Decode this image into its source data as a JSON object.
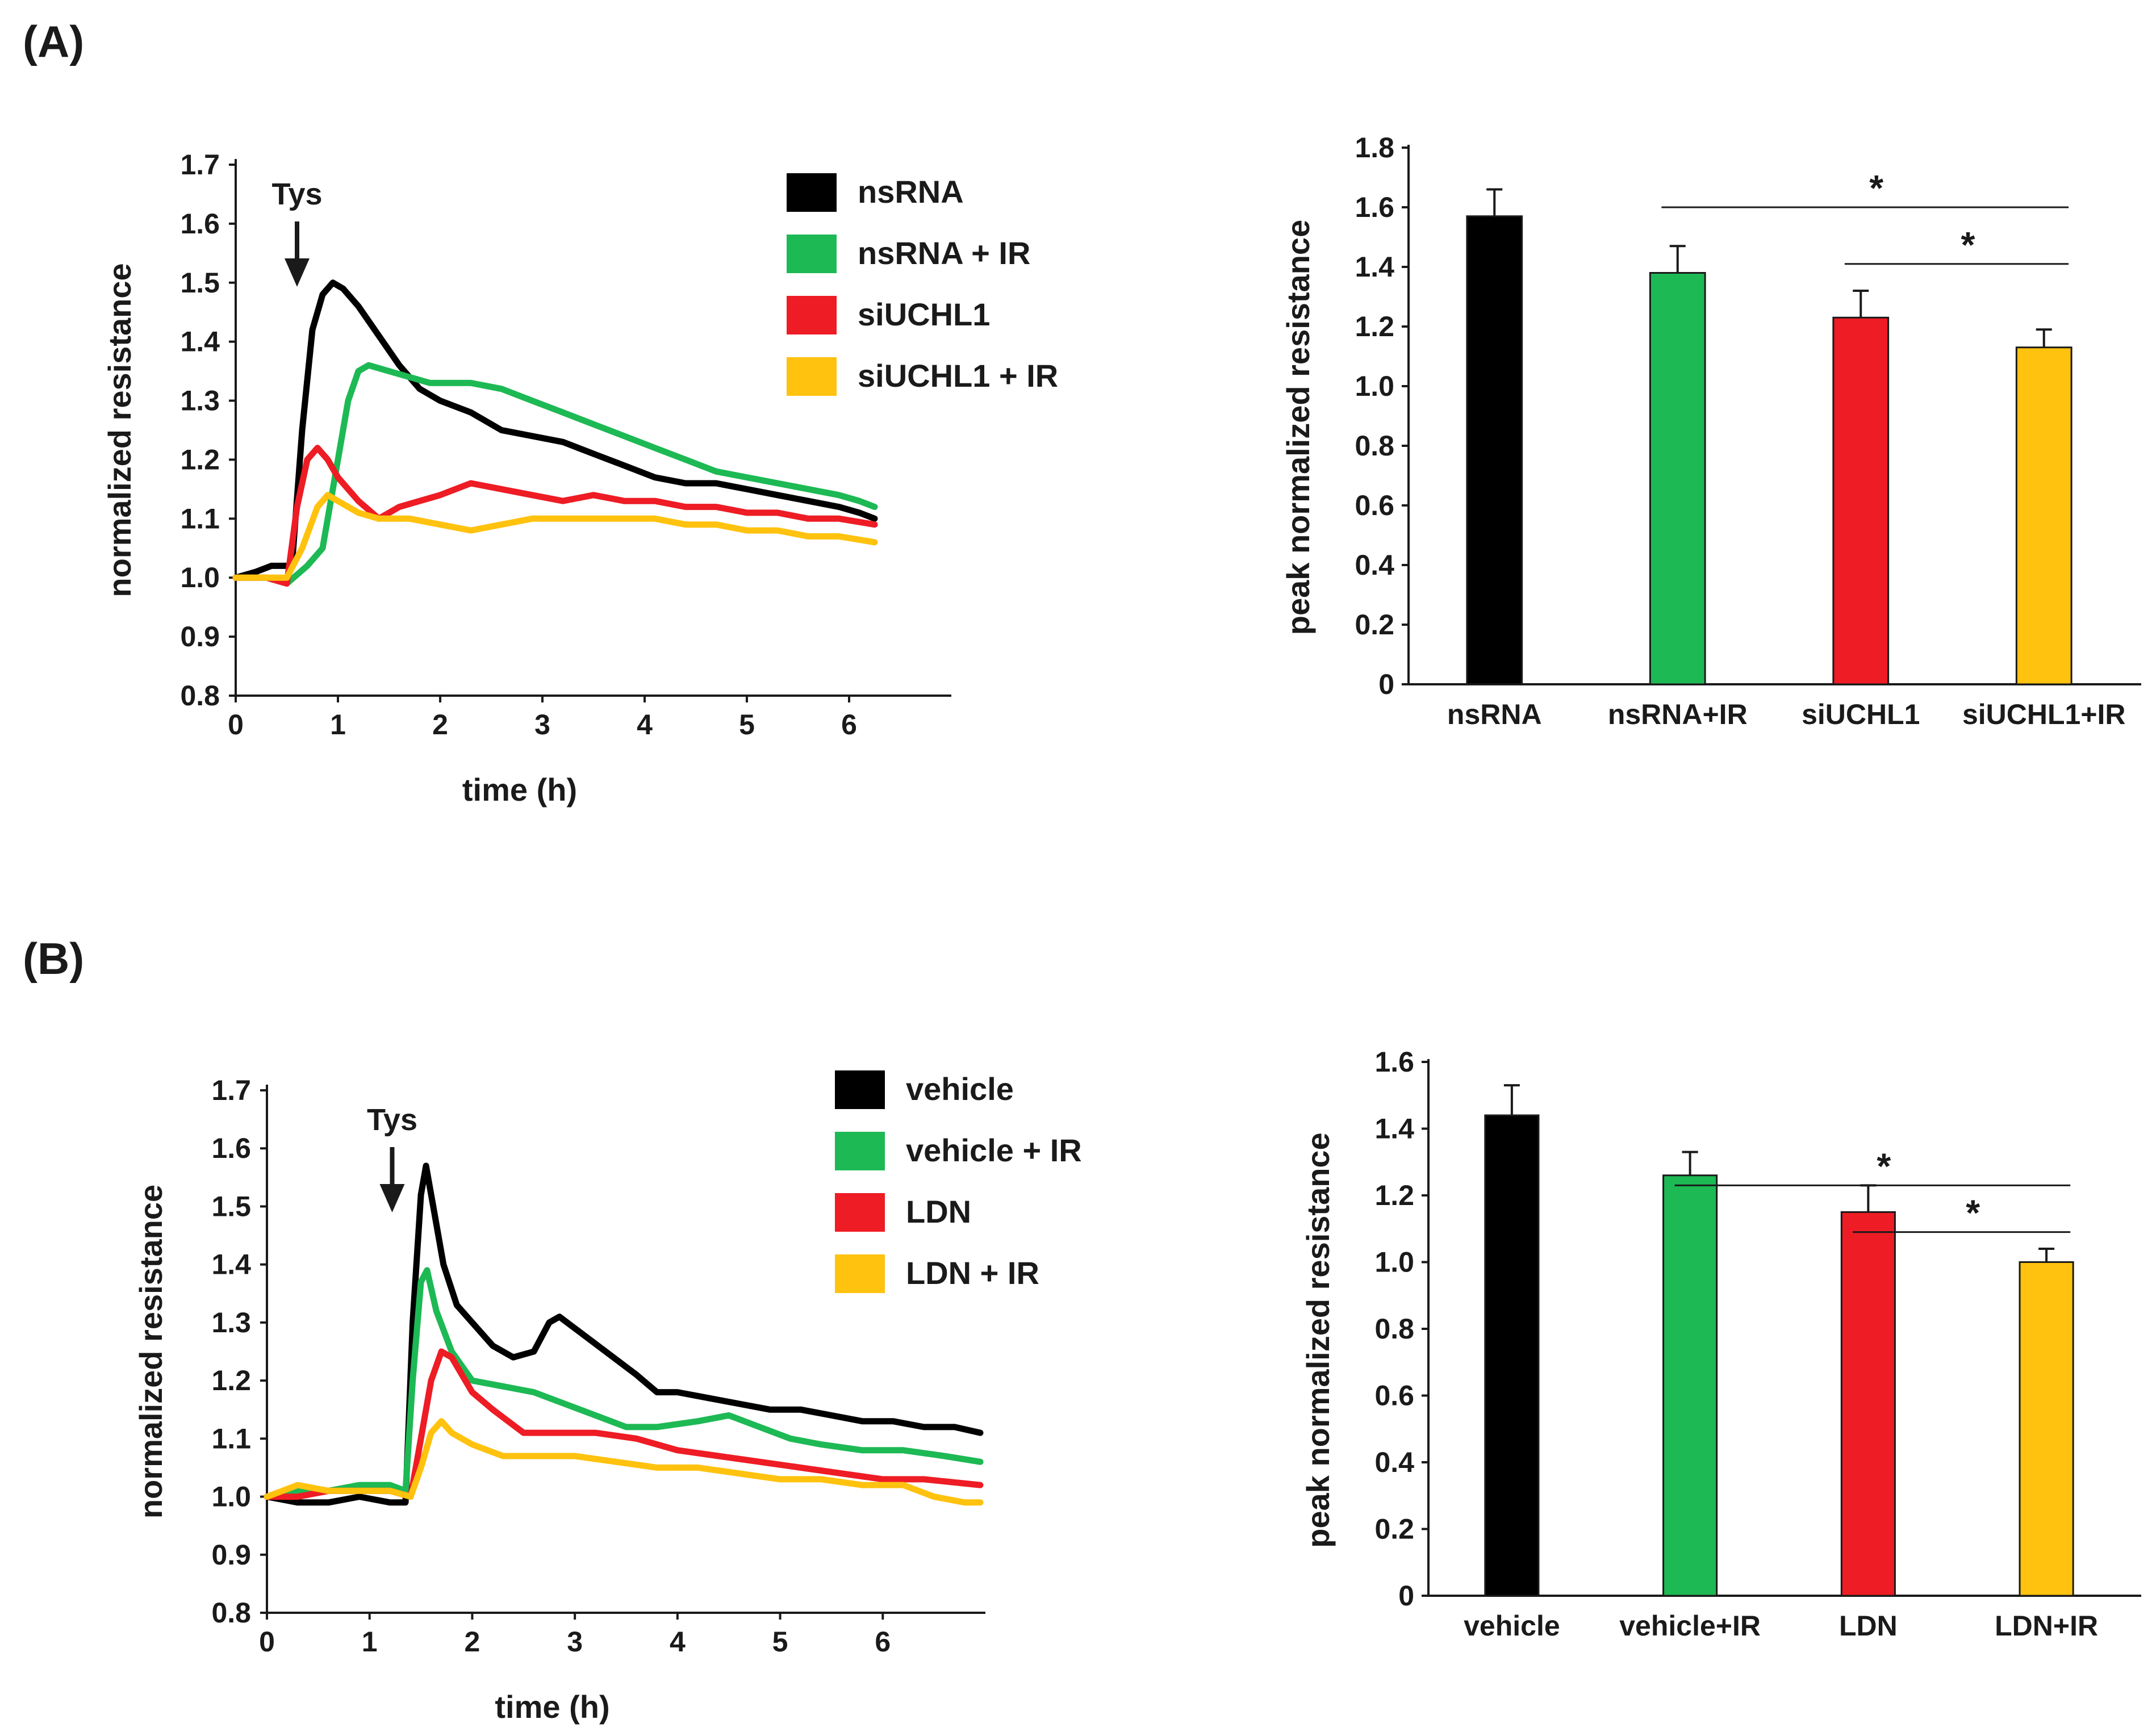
{
  "panels": [
    {
      "label": "(A)"
    },
    {
      "label": "(B)"
    }
  ],
  "colors": {
    "black": "#000000",
    "green": "#1db954",
    "red": "#ee1c24",
    "yellow": "#ffc20e",
    "axis": "#1a1a1a"
  },
  "icons": {
    "arrow": "down-arrow-icon"
  },
  "chart_data": [
    {
      "id": "A_line",
      "type": "line",
      "title": "",
      "xlabel": "time (h)",
      "ylabel": "normalized resistance",
      "xlim": [
        0,
        7
      ],
      "ylim": [
        0.8,
        1.7
      ],
      "xticks": [
        0,
        1,
        2,
        3,
        4,
        5,
        6
      ],
      "yticks": [
        "0.8",
        "0.9",
        "1.0",
        "1.1",
        "1.2",
        "1.3",
        "1.4",
        "1.5",
        "1.6",
        "1.7"
      ],
      "annotation": {
        "text": "Tys",
        "x": 0.6
      },
      "legend_position": "top-right",
      "series": [
        {
          "name": "nsRNA",
          "color": "#000000",
          "x": [
            0,
            0.2,
            0.35,
            0.55,
            0.65,
            0.75,
            0.85,
            0.95,
            1.05,
            1.2,
            1.4,
            1.6,
            1.8,
            2.0,
            2.3,
            2.6,
            2.9,
            3.2,
            3.5,
            3.8,
            4.1,
            4.4,
            4.7,
            5.0,
            5.3,
            5.6,
            5.9,
            6.1,
            6.25
          ],
          "y": [
            1.0,
            1.01,
            1.02,
            1.02,
            1.25,
            1.42,
            1.48,
            1.5,
            1.49,
            1.46,
            1.41,
            1.36,
            1.32,
            1.3,
            1.28,
            1.25,
            1.24,
            1.23,
            1.21,
            1.19,
            1.17,
            1.16,
            1.16,
            1.15,
            1.14,
            1.13,
            1.12,
            1.11,
            1.1
          ]
        },
        {
          "name": "nsRNA + IR",
          "color": "#1db954",
          "x": [
            0,
            0.3,
            0.5,
            0.7,
            0.85,
            1.0,
            1.1,
            1.2,
            1.3,
            1.5,
            1.7,
            1.9,
            2.1,
            2.3,
            2.6,
            2.9,
            3.2,
            3.5,
            3.8,
            4.1,
            4.4,
            4.7,
            5.0,
            5.3,
            5.6,
            5.9,
            6.1,
            6.25
          ],
          "y": [
            1.0,
            1.0,
            0.99,
            1.02,
            1.05,
            1.2,
            1.3,
            1.35,
            1.36,
            1.35,
            1.34,
            1.33,
            1.33,
            1.33,
            1.32,
            1.3,
            1.28,
            1.26,
            1.24,
            1.22,
            1.2,
            1.18,
            1.17,
            1.16,
            1.15,
            1.14,
            1.13,
            1.12
          ]
        },
        {
          "name": "siUCHL1",
          "color": "#ee1c24",
          "x": [
            0,
            0.3,
            0.5,
            0.6,
            0.7,
            0.8,
            0.9,
            1.0,
            1.2,
            1.4,
            1.6,
            1.8,
            2.0,
            2.3,
            2.6,
            2.9,
            3.2,
            3.5,
            3.8,
            4.1,
            4.4,
            4.7,
            5.0,
            5.3,
            5.6,
            5.9,
            6.25
          ],
          "y": [
            1.0,
            1.0,
            0.99,
            1.12,
            1.2,
            1.22,
            1.2,
            1.17,
            1.13,
            1.1,
            1.12,
            1.13,
            1.14,
            1.16,
            1.15,
            1.14,
            1.13,
            1.14,
            1.13,
            1.13,
            1.12,
            1.12,
            1.11,
            1.11,
            1.1,
            1.1,
            1.09
          ]
        },
        {
          "name": "siUCHL1 + IR",
          "color": "#ffc20e",
          "x": [
            0,
            0.3,
            0.5,
            0.65,
            0.8,
            0.9,
            1.0,
            1.2,
            1.4,
            1.7,
            2.0,
            2.3,
            2.6,
            2.9,
            3.2,
            3.5,
            3.8,
            4.1,
            4.4,
            4.7,
            5.0,
            5.3,
            5.6,
            5.9,
            6.25
          ],
          "y": [
            1.0,
            1.0,
            1.0,
            1.05,
            1.12,
            1.14,
            1.13,
            1.11,
            1.1,
            1.1,
            1.09,
            1.08,
            1.09,
            1.1,
            1.1,
            1.1,
            1.1,
            1.1,
            1.09,
            1.09,
            1.08,
            1.08,
            1.07,
            1.07,
            1.06
          ]
        }
      ]
    },
    {
      "id": "A_bar",
      "type": "bar",
      "title": "",
      "xlabel": "",
      "ylabel": "peak normalized resistance",
      "ylim": [
        0,
        1.8
      ],
      "yticks": [
        "0",
        "0.2",
        "0.4",
        "0.6",
        "0.8",
        "1.0",
        "1.2",
        "1.4",
        "1.6",
        "1.8"
      ],
      "categories": [
        "nsRNA",
        "nsRNA+IR",
        "siUCHL1",
        "siUCHL1+IR"
      ],
      "values": [
        1.57,
        1.38,
        1.23,
        1.13
      ],
      "errors": [
        0.09,
        0.09,
        0.09,
        0.06
      ],
      "colors": [
        "#000000",
        "#1db954",
        "#ee1c24",
        "#ffc20e"
      ],
      "significance": [
        {
          "from": 1,
          "to": 3,
          "label": "*",
          "y": 1.6
        },
        {
          "from": 2,
          "to": 3,
          "label": "*",
          "y": 1.41
        }
      ]
    },
    {
      "id": "B_line",
      "type": "line",
      "title": "",
      "xlabel": "time (h)",
      "ylabel": "normalized resistance",
      "xlim": [
        0,
        7
      ],
      "ylim": [
        0.8,
        1.7
      ],
      "xticks": [
        0,
        1,
        2,
        3,
        4,
        5,
        6
      ],
      "yticks": [
        "0.8",
        "0.9",
        "1.0",
        "1.1",
        "1.2",
        "1.3",
        "1.4",
        "1.5",
        "1.6",
        "1.7"
      ],
      "annotation": {
        "text": "Tys",
        "x": 1.22
      },
      "legend_position": "top-right",
      "series": [
        {
          "name": "vehicle",
          "color": "#000000",
          "x": [
            0,
            0.3,
            0.6,
            0.9,
            1.2,
            1.35,
            1.42,
            1.5,
            1.55,
            1.62,
            1.72,
            1.85,
            2.0,
            2.2,
            2.4,
            2.6,
            2.75,
            2.85,
            3.0,
            3.3,
            3.6,
            3.8,
            4.0,
            4.3,
            4.6,
            4.9,
            5.2,
            5.5,
            5.8,
            6.1,
            6.4,
            6.7,
            6.95
          ],
          "y": [
            1.0,
            0.99,
            0.99,
            1.0,
            0.99,
            0.99,
            1.3,
            1.52,
            1.57,
            1.5,
            1.4,
            1.33,
            1.3,
            1.26,
            1.24,
            1.25,
            1.3,
            1.31,
            1.29,
            1.25,
            1.21,
            1.18,
            1.18,
            1.17,
            1.16,
            1.15,
            1.15,
            1.14,
            1.13,
            1.13,
            1.12,
            1.12,
            1.11
          ]
        },
        {
          "name": "vehicle + IR",
          "color": "#1db954",
          "x": [
            0,
            0.3,
            0.6,
            0.9,
            1.2,
            1.35,
            1.42,
            1.5,
            1.56,
            1.65,
            1.8,
            2.0,
            2.3,
            2.6,
            2.9,
            3.2,
            3.5,
            3.8,
            4.2,
            4.5,
            4.8,
            5.1,
            5.4,
            5.8,
            6.2,
            6.6,
            6.95
          ],
          "y": [
            1.0,
            1.01,
            1.01,
            1.02,
            1.02,
            1.01,
            1.2,
            1.37,
            1.39,
            1.32,
            1.25,
            1.2,
            1.19,
            1.18,
            1.16,
            1.14,
            1.12,
            1.12,
            1.13,
            1.14,
            1.12,
            1.1,
            1.09,
            1.08,
            1.08,
            1.07,
            1.06
          ]
        },
        {
          "name": "LDN",
          "color": "#ee1c24",
          "x": [
            0,
            0.3,
            0.6,
            0.9,
            1.2,
            1.4,
            1.5,
            1.6,
            1.7,
            1.8,
            2.0,
            2.2,
            2.5,
            2.8,
            3.2,
            3.6,
            4.0,
            4.4,
            4.8,
            5.2,
            5.6,
            6.0,
            6.4,
            6.95
          ],
          "y": [
            1.0,
            1.0,
            1.01,
            1.01,
            1.01,
            1.0,
            1.1,
            1.2,
            1.25,
            1.24,
            1.18,
            1.15,
            1.11,
            1.11,
            1.11,
            1.1,
            1.08,
            1.07,
            1.06,
            1.05,
            1.04,
            1.03,
            1.03,
            1.02
          ]
        },
        {
          "name": "LDN + IR",
          "color": "#ffc20e",
          "x": [
            0,
            0.3,
            0.6,
            0.9,
            1.2,
            1.4,
            1.5,
            1.6,
            1.7,
            1.8,
            2.0,
            2.3,
            2.6,
            3.0,
            3.4,
            3.8,
            4.2,
            4.6,
            5.0,
            5.4,
            5.8,
            6.2,
            6.5,
            6.8,
            6.95
          ],
          "y": [
            1.0,
            1.02,
            1.01,
            1.01,
            1.01,
            1.0,
            1.05,
            1.11,
            1.13,
            1.11,
            1.09,
            1.07,
            1.07,
            1.07,
            1.06,
            1.05,
            1.05,
            1.04,
            1.03,
            1.03,
            1.02,
            1.02,
            1.0,
            0.99,
            0.99
          ]
        }
      ]
    },
    {
      "id": "B_bar",
      "type": "bar",
      "title": "",
      "xlabel": "",
      "ylabel": "peak normalized resistance",
      "ylim": [
        0,
        1.6
      ],
      "yticks": [
        "0",
        "0.2",
        "0.4",
        "0.6",
        "0.8",
        "1.0",
        "1.2",
        "1.4",
        "1.6"
      ],
      "categories": [
        "vehicle",
        "vehicle+IR",
        "LDN",
        "LDN+IR"
      ],
      "values": [
        1.44,
        1.26,
        1.15,
        1.0
      ],
      "errors": [
        0.09,
        0.07,
        0.08,
        0.04
      ],
      "colors": [
        "#000000",
        "#1db954",
        "#ee1c24",
        "#ffc20e"
      ],
      "significance": [
        {
          "from": 1,
          "to": 3,
          "label": "*",
          "y": 1.23
        },
        {
          "from": 2,
          "to": 3,
          "label": "*",
          "y": 1.09
        }
      ]
    }
  ]
}
